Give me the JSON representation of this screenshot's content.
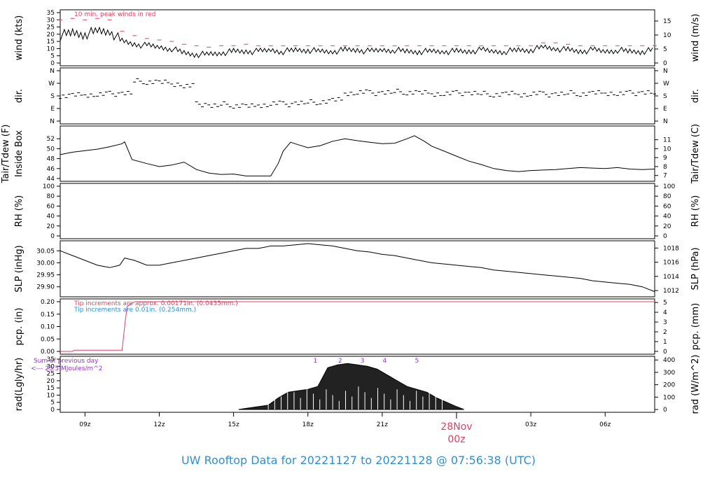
{
  "footer_title": "UW Rooftop Data for 20221127  to  20221128 @ 07:56:38  (UTC)",
  "colors": {
    "line": "#000000",
    "red": "#e04060",
    "blue": "#2f8fcf",
    "purple": "#9b30d0"
  },
  "chart_data": [
    {
      "type": "line",
      "name": "wind",
      "ylabel_left": "wind (kts)",
      "ylabel_right": "wind (m/s)",
      "ylim_left": [
        0,
        35
      ],
      "yticks_left": [
        0,
        5,
        10,
        15,
        20,
        25,
        30,
        35
      ],
      "ylim_right": [
        0,
        18
      ],
      "yticks_right": [
        0,
        5,
        10,
        15
      ],
      "annotation": "10 min. peak winds in red",
      "x": [
        8.0,
        8.5,
        9.0,
        9.5,
        10.0,
        10.5,
        11.0,
        11.5,
        12.0,
        12.5,
        13.0,
        13.5,
        14.0,
        14.5,
        15.0,
        15.5,
        16.0,
        16.5,
        17.0,
        17.5,
        18.0,
        18.5,
        19.0,
        19.5,
        20.0,
        20.5,
        21.0,
        21.5,
        22.0,
        22.5,
        23.0,
        23.5,
        24.0,
        24.5,
        25.0,
        25.5,
        26.0,
        26.5,
        27.0,
        27.5,
        28.0,
        28.5,
        29.0,
        29.5,
        30.0,
        30.5,
        31.0,
        31.5,
        32.0
      ],
      "y": [
        19,
        21,
        20,
        22,
        22,
        15,
        13,
        12,
        11,
        10,
        7,
        6,
        6,
        7,
        8,
        8,
        8,
        9,
        8,
        9,
        9,
        8,
        8,
        9,
        9,
        8,
        9,
        9,
        8,
        8,
        8,
        8,
        8,
        8,
        9,
        8,
        8,
        9,
        9,
        11,
        10,
        9,
        8,
        9,
        8,
        9,
        8,
        8,
        9
      ],
      "peak_y": [
        30,
        31,
        30,
        31,
        30,
        22,
        19,
        17,
        16,
        15,
        13,
        12,
        11,
        12,
        12,
        13,
        12,
        12,
        12,
        12,
        12,
        12,
        12,
        12,
        12,
        12,
        12,
        12,
        12,
        12,
        12,
        12,
        12,
        12,
        12,
        12,
        12,
        12,
        12,
        14,
        14,
        13,
        12,
        12,
        12,
        12,
        12,
        12,
        12
      ]
    },
    {
      "type": "scatter",
      "name": "dir",
      "ylabel_left": "dir.",
      "ylabel_right": "dir.",
      "ylim": [
        0,
        360
      ],
      "ytick_labels": [
        "N",
        "E",
        "S",
        "W",
        "N"
      ],
      "x": [
        8.0,
        8.5,
        9.0,
        9.5,
        10.0,
        10.5,
        11.0,
        11.5,
        12.0,
        12.5,
        13.0,
        13.5,
        14.0,
        14.5,
        15.0,
        15.5,
        16.0,
        16.5,
        17.0,
        17.5,
        18.0,
        18.5,
        19.0,
        19.5,
        20.0,
        20.5,
        21.0,
        21.5,
        22.0,
        22.5,
        23.0,
        23.5,
        24.0,
        24.5,
        25.0,
        25.5,
        26.0,
        26.5,
        27.0,
        27.5,
        28.0,
        28.5,
        29.0,
        29.5,
        30.0,
        30.5,
        31.0,
        31.5,
        32.0
      ],
      "y": [
        180,
        185,
        188,
        190,
        195,
        200,
        285,
        280,
        275,
        265,
        250,
        120,
        110,
        120,
        110,
        105,
        115,
        125,
        120,
        130,
        135,
        140,
        150,
        200,
        205,
        200,
        205,
        210,
        205,
        200,
        195,
        195,
        200,
        200,
        195,
        190,
        195,
        190,
        195,
        190,
        195,
        200,
        195,
        200,
        200,
        195,
        200,
        205,
        200
      ]
    },
    {
      "type": "line",
      "name": "temp",
      "ylabel_left": "Inside Box",
      "ylabel_left2": "Tair/Tdew (F)",
      "ylabel_right": "Tair/Tdew (C)",
      "ylim_left": [
        44,
        54
      ],
      "yticks_left": [
        44,
        46,
        48,
        50,
        52
      ],
      "ylim_right": [
        6.67,
        12.22
      ],
      "yticks_right": [
        7,
        8,
        9,
        10,
        11
      ],
      "x": [
        8.0,
        8.5,
        9.0,
        9.5,
        10.0,
        10.5,
        10.6,
        10.9,
        11.5,
        12.0,
        12.5,
        13.0,
        13.5,
        14.0,
        14.5,
        15.0,
        15.5,
        16.0,
        16.5,
        16.8,
        17.0,
        17.3,
        17.6,
        18.0,
        18.5,
        19.0,
        19.5,
        20.0,
        20.5,
        21.0,
        21.5,
        22.0,
        22.3,
        22.7,
        23.0,
        23.5,
        24.0,
        24.5,
        25.0,
        25.5,
        26.0,
        26.5,
        27.0,
        27.5,
        28.0,
        28.5,
        29.0,
        29.5,
        30.0,
        30.5,
        31.0,
        31.5,
        32.0
      ],
      "y": [
        48.8,
        49.3,
        49.6,
        49.9,
        50.4,
        51.0,
        51.4,
        47.8,
        47.0,
        46.4,
        46.7,
        47.3,
        45.8,
        45.1,
        44.8,
        44.9,
        44.5,
        44.5,
        44.5,
        47.0,
        49.5,
        51.3,
        50.8,
        50.2,
        50.6,
        51.5,
        52.0,
        51.6,
        51.3,
        51.0,
        51.1,
        52.0,
        52.6,
        51.5,
        50.5,
        49.5,
        48.5,
        47.5,
        46.8,
        46.0,
        45.6,
        45.4,
        45.6,
        45.7,
        45.8,
        46.0,
        46.2,
        46.1,
        46.0,
        46.2,
        45.9,
        45.8,
        45.9
      ]
    },
    {
      "type": "line",
      "name": "rh",
      "ylabel_left": "RH (%)",
      "ylabel_right": "RH (%)",
      "ylim": [
        0,
        100
      ],
      "yticks": [
        0,
        20,
        40,
        60,
        80,
        100
      ],
      "x": [],
      "y": []
    },
    {
      "type": "line",
      "name": "slp",
      "ylabel_left": "SLP (inHg)",
      "ylabel_right": "SLP (hPa)",
      "ylim_left": [
        29.87,
        30.08
      ],
      "yticks_left": [
        29.9,
        29.95,
        30.0,
        30.05
      ],
      "ylim_right": [
        1011.5,
        1018.5
      ],
      "yticks_right": [
        1012,
        1014,
        1016,
        1018
      ],
      "x": [
        8.0,
        8.5,
        9.0,
        9.5,
        10.0,
        10.4,
        10.6,
        11.0,
        11.5,
        12.0,
        12.5,
        13.0,
        13.5,
        14.0,
        14.5,
        15.0,
        15.5,
        16.0,
        16.5,
        17.0,
        17.5,
        18.0,
        18.5,
        19.0,
        19.5,
        20.0,
        20.5,
        21.0,
        21.5,
        22.0,
        22.5,
        23.0,
        23.5,
        24.0,
        24.5,
        25.0,
        25.5,
        26.0,
        26.5,
        27.0,
        27.5,
        28.0,
        28.5,
        29.0,
        29.5,
        30.0,
        30.5,
        31.0,
        31.5,
        32.0
      ],
      "y": [
        30.05,
        30.03,
        30.01,
        29.99,
        29.98,
        29.99,
        30.02,
        30.01,
        29.99,
        29.99,
        30.0,
        30.01,
        30.02,
        30.03,
        30.04,
        30.05,
        30.06,
        30.06,
        30.07,
        30.07,
        30.075,
        30.08,
        30.075,
        30.07,
        30.06,
        30.05,
        30.045,
        30.035,
        30.03,
        30.02,
        30.01,
        30.0,
        29.995,
        29.99,
        29.985,
        29.98,
        29.97,
        29.965,
        29.96,
        29.955,
        29.95,
        29.945,
        29.94,
        29.935,
        29.925,
        29.92,
        29.915,
        29.91,
        29.9,
        29.88
      ]
    },
    {
      "type": "line",
      "name": "pcp",
      "ylabel_left": "pcp. (in)",
      "ylabel_right": "pcp. (mm)",
      "ylim_left": [
        0,
        0.2
      ],
      "yticks_left": [
        0.0,
        0.05,
        0.1,
        0.15,
        0.2
      ],
      "ylim_right": [
        0,
        5.08
      ],
      "yticks_right": [
        0,
        1,
        2,
        3,
        4,
        5
      ],
      "annotation_red": "Tip increments are approx. 0.00171in. (0.0435mm.)",
      "annotation_blue": "Tip increments are 0.01in. (0.254mm.)",
      "x": [
        8.0,
        8.5,
        8.55,
        10.5,
        10.6,
        10.7,
        11.0,
        32.0
      ],
      "y": [
        0.0,
        0.0,
        0.005,
        0.005,
        0.1,
        0.18,
        0.2,
        0.2
      ]
    },
    {
      "type": "area",
      "name": "rad",
      "ylabel_left": "rad(Lgly/hr)",
      "ylabel_right": "rad (W/m^2)",
      "ylim_left": [
        0,
        35
      ],
      "yticks_left": [
        0,
        5,
        10,
        15,
        20,
        25,
        30,
        35
      ],
      "ylim_right": [
        0,
        400
      ],
      "yticks_right": [
        0,
        100,
        200,
        300,
        400
      ],
      "annotation": "Sum of previous day",
      "annotation2": "<--- 23.5 MJoules/m^2",
      "markers": [
        "1",
        "2",
        "3",
        "4",
        "5"
      ],
      "marker_x": [
        18.3,
        19.3,
        20.2,
        21.1,
        22.4
      ],
      "x": [
        15.2,
        15.6,
        16.0,
        16.4,
        16.8,
        17.2,
        17.6,
        18.0,
        18.4,
        18.8,
        19.2,
        19.6,
        20.0,
        20.4,
        20.8,
        21.2,
        21.6,
        22.0,
        22.4,
        22.8,
        23.2,
        23.6,
        24.0,
        24.3
      ],
      "y": [
        0,
        1,
        2,
        3,
        8,
        12,
        13,
        14,
        16,
        29,
        31,
        32,
        31,
        30,
        28,
        24,
        20,
        16,
        14,
        12,
        8,
        5,
        2,
        0
      ]
    }
  ],
  "x_axis": {
    "ticks": [
      9,
      12,
      15,
      18,
      21,
      27,
      30
    ],
    "tick_labels": [
      "09z",
      "12z",
      "15z",
      "18z",
      "21z",
      "03z",
      "06z"
    ],
    "xlim": [
      8.0,
      32.0
    ],
    "date_label": "28Nov",
    "date_sub": "00z"
  }
}
